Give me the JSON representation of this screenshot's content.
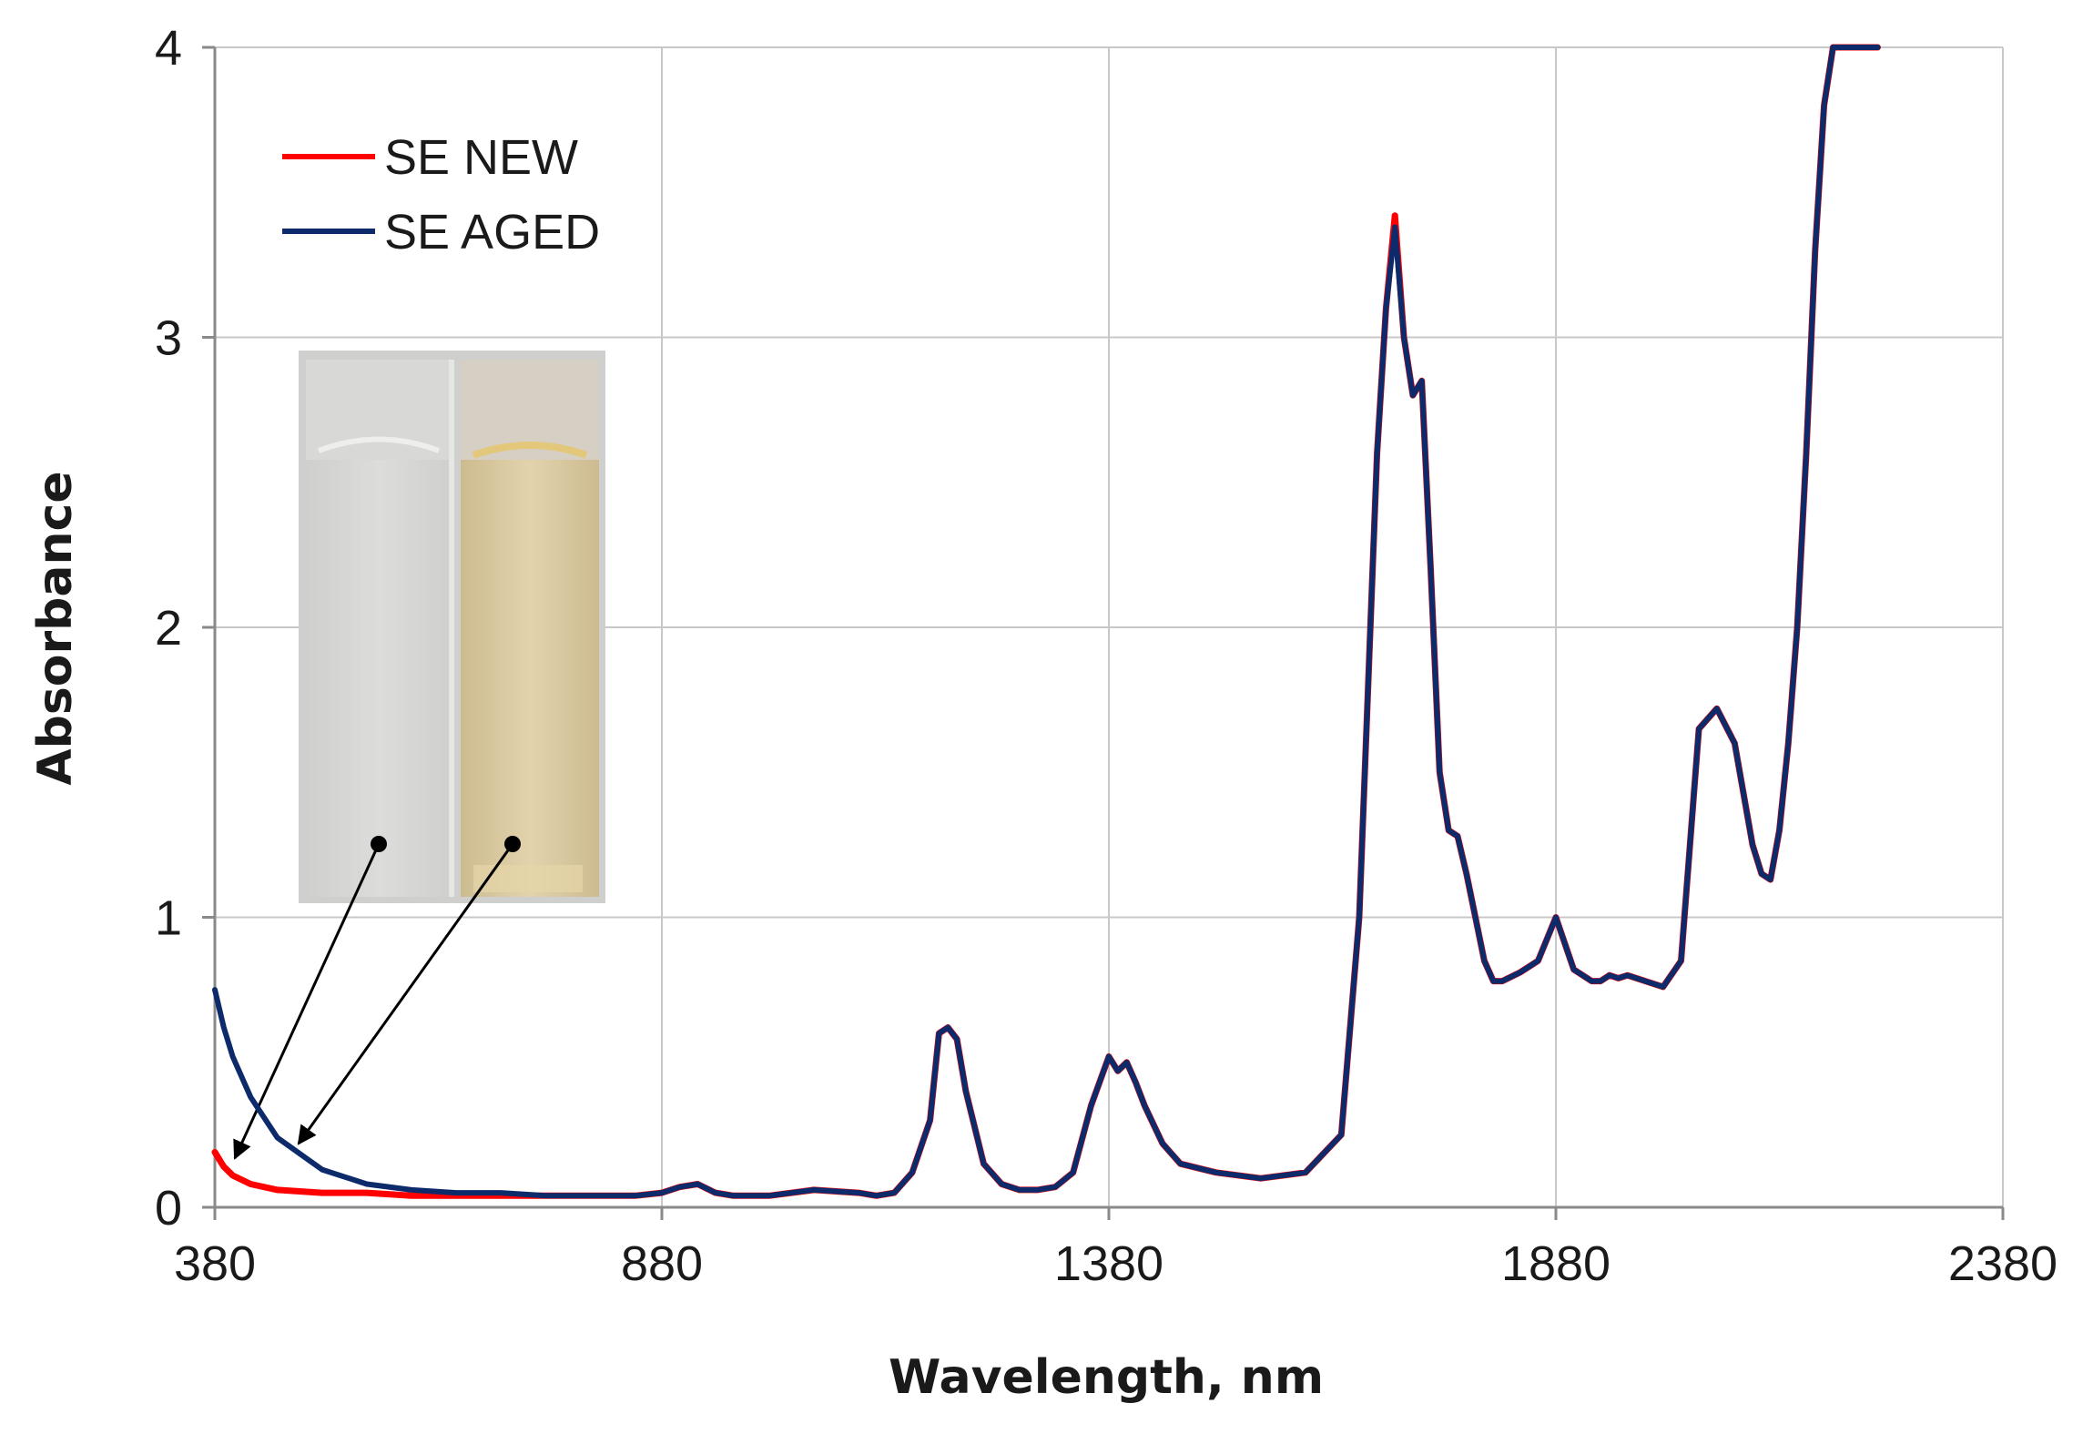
{
  "chart_data": {
    "type": "line",
    "title": "",
    "xlabel": "Wavelength, nm",
    "ylabel": "Absorbance",
    "xlim": [
      380,
      2380
    ],
    "ylim": [
      0,
      4
    ],
    "xticks": [
      380,
      880,
      1380,
      1880,
      2380
    ],
    "yticks": [
      0,
      1,
      2,
      3,
      4
    ],
    "grid": true,
    "legend_position": "top-left",
    "series": [
      {
        "name": "SE NEW",
        "color": "#ff0000",
        "x": [
          380,
          390,
          400,
          420,
          450,
          500,
          550,
          600,
          650,
          700,
          750,
          800,
          850,
          880,
          900,
          920,
          940,
          960,
          1000,
          1050,
          1100,
          1120,
          1140,
          1160,
          1180,
          1190,
          1200,
          1210,
          1220,
          1240,
          1260,
          1280,
          1300,
          1320,
          1340,
          1360,
          1380,
          1390,
          1400,
          1410,
          1420,
          1440,
          1460,
          1500,
          1550,
          1600,
          1640,
          1660,
          1680,
          1690,
          1700,
          1710,
          1720,
          1730,
          1740,
          1750,
          1760,
          1770,
          1780,
          1800,
          1810,
          1820,
          1840,
          1860,
          1880,
          1900,
          1920,
          1930,
          1940,
          1950,
          1960,
          1980,
          2000,
          2020,
          2040,
          2060,
          2080,
          2100,
          2110,
          2120,
          2130,
          2140,
          2150,
          2160,
          2170,
          2180,
          2190,
          2200,
          2210,
          2220,
          2230,
          2240
        ],
        "values": [
          0.19,
          0.14,
          0.11,
          0.08,
          0.06,
          0.05,
          0.05,
          0.04,
          0.04,
          0.04,
          0.04,
          0.04,
          0.04,
          0.05,
          0.07,
          0.08,
          0.05,
          0.04,
          0.04,
          0.06,
          0.05,
          0.04,
          0.05,
          0.12,
          0.3,
          0.6,
          0.62,
          0.58,
          0.4,
          0.15,
          0.08,
          0.06,
          0.06,
          0.07,
          0.12,
          0.35,
          0.52,
          0.47,
          0.5,
          0.43,
          0.35,
          0.22,
          0.15,
          0.12,
          0.1,
          0.12,
          0.25,
          1.0,
          2.6,
          3.1,
          3.42,
          3.0,
          2.8,
          2.85,
          2.2,
          1.5,
          1.3,
          1.28,
          1.15,
          0.85,
          0.78,
          0.78,
          0.81,
          0.85,
          1.0,
          0.82,
          0.78,
          0.78,
          0.8,
          0.79,
          0.8,
          0.78,
          0.76,
          0.85,
          1.65,
          1.72,
          1.6,
          1.25,
          1.15,
          1.13,
          1.3,
          1.6,
          2.0,
          2.6,
          3.3,
          3.8,
          4.0,
          4.0,
          4.0,
          4.0,
          4.0,
          4.0
        ]
      },
      {
        "name": "SE AGED",
        "color": "#0d2b6b",
        "x": [
          380,
          390,
          400,
          420,
          450,
          500,
          550,
          600,
          650,
          700,
          750,
          800,
          850,
          880,
          900,
          920,
          940,
          960,
          1000,
          1050,
          1100,
          1120,
          1140,
          1160,
          1180,
          1190,
          1200,
          1210,
          1220,
          1240,
          1260,
          1280,
          1300,
          1320,
          1340,
          1360,
          1380,
          1390,
          1400,
          1410,
          1420,
          1440,
          1460,
          1500,
          1550,
          1600,
          1640,
          1660,
          1680,
          1690,
          1700,
          1710,
          1720,
          1730,
          1740,
          1750,
          1760,
          1770,
          1780,
          1800,
          1810,
          1820,
          1840,
          1860,
          1880,
          1900,
          1920,
          1930,
          1940,
          1950,
          1960,
          1980,
          2000,
          2020,
          2040,
          2060,
          2080,
          2100,
          2110,
          2120,
          2130,
          2140,
          2150,
          2160,
          2170,
          2180,
          2190,
          2200,
          2210,
          2220,
          2230,
          2240
        ],
        "values": [
          0.75,
          0.62,
          0.52,
          0.38,
          0.24,
          0.13,
          0.08,
          0.06,
          0.05,
          0.05,
          0.04,
          0.04,
          0.04,
          0.05,
          0.07,
          0.08,
          0.05,
          0.04,
          0.04,
          0.06,
          0.05,
          0.04,
          0.05,
          0.12,
          0.3,
          0.6,
          0.62,
          0.58,
          0.4,
          0.15,
          0.08,
          0.06,
          0.06,
          0.07,
          0.12,
          0.35,
          0.52,
          0.47,
          0.5,
          0.43,
          0.35,
          0.22,
          0.15,
          0.12,
          0.1,
          0.12,
          0.25,
          1.0,
          2.6,
          3.1,
          3.38,
          3.0,
          2.8,
          2.85,
          2.2,
          1.5,
          1.3,
          1.28,
          1.15,
          0.85,
          0.78,
          0.78,
          0.81,
          0.85,
          1.0,
          0.82,
          0.78,
          0.78,
          0.8,
          0.79,
          0.8,
          0.78,
          0.76,
          0.85,
          1.65,
          1.72,
          1.6,
          1.25,
          1.15,
          1.13,
          1.3,
          1.6,
          2.0,
          2.6,
          3.3,
          3.8,
          4.0,
          4.0,
          4.0,
          4.0,
          4.0,
          4.0
        ]
      }
    ],
    "inset": {
      "description": "photo of two cuvettes",
      "left_color": "#d4d4d2",
      "right_color": "#d9c9a3"
    }
  }
}
